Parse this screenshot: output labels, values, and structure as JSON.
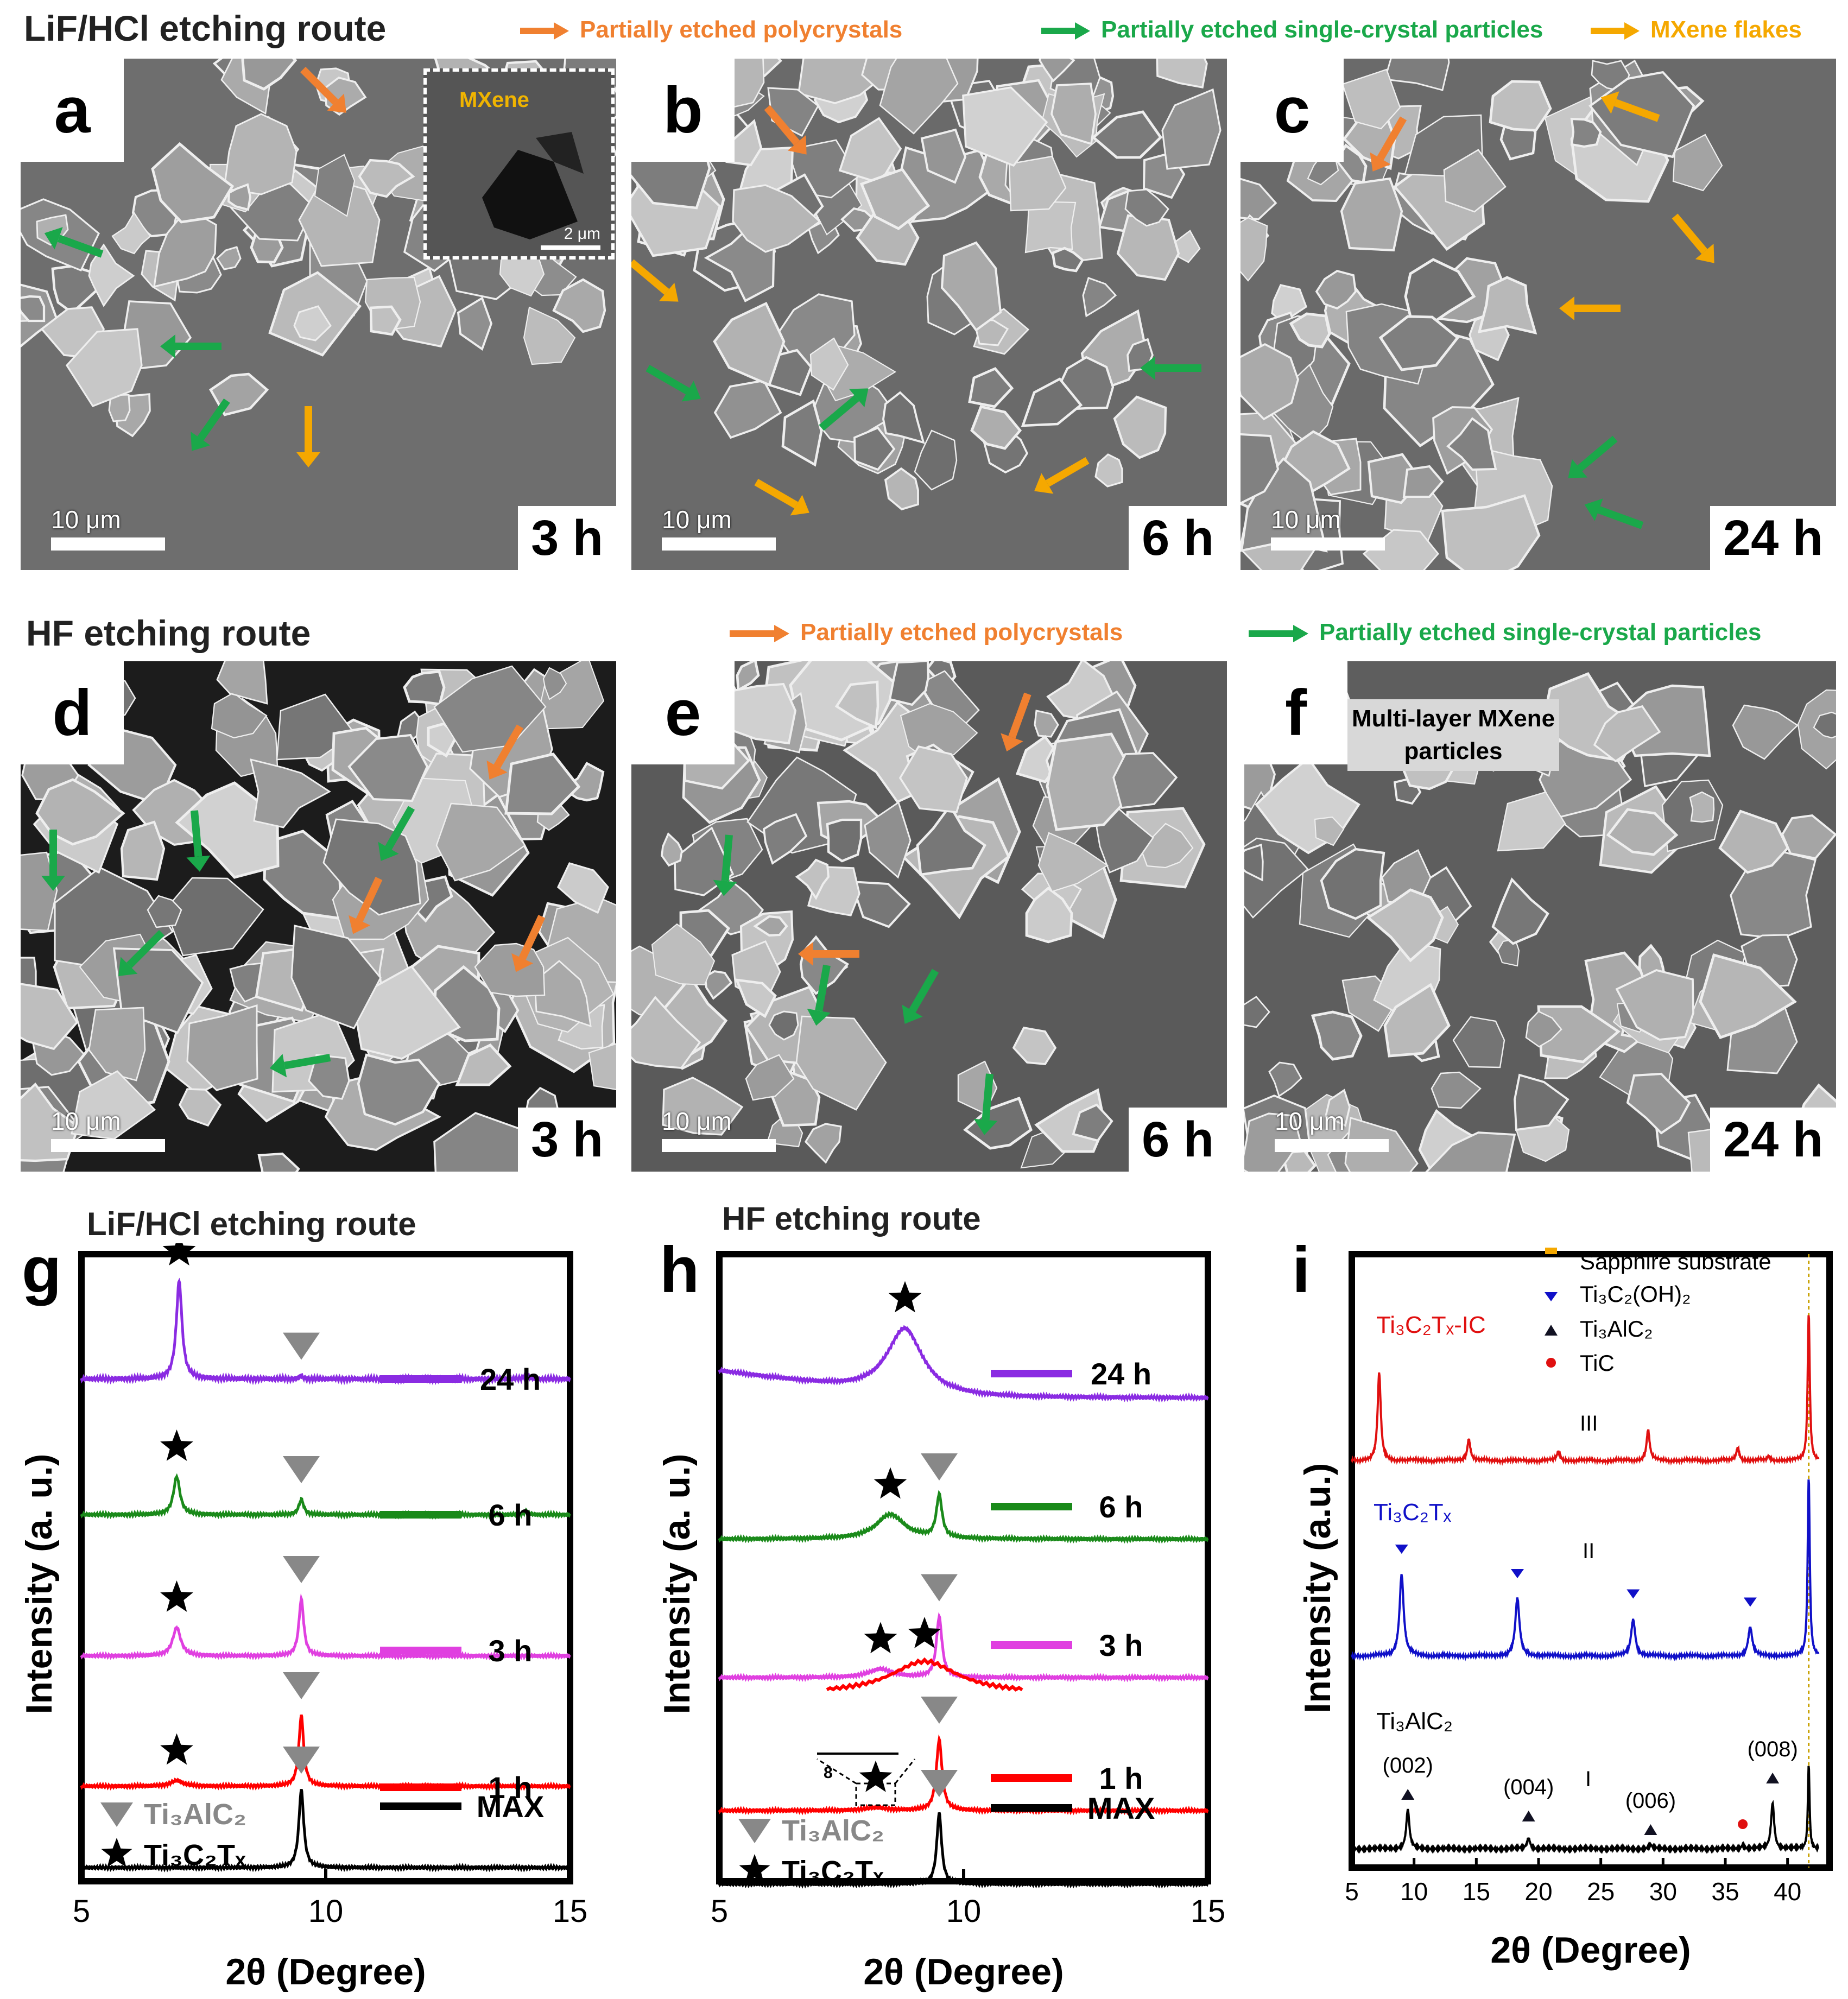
{
  "colors": {
    "orange": "#f08030",
    "green": "#1aa84a",
    "yellow": "#f5a800",
    "purple": "#8a2be2",
    "darkgreen": "#1a8a1a",
    "magenta": "#e040e0",
    "red": "#ff0000",
    "black": "#000000",
    "gray": "#808080",
    "blue": "#1010c8",
    "ic_red": "#e01010"
  },
  "sem": {
    "row1_title": "LiF/HCl etching route",
    "row1_legend": [
      "Partially etched polycrystals",
      "Partially etched single-crystal particles",
      "MXene flakes"
    ],
    "row2_title": "HF etching route",
    "row2_legend": [
      "Partially etched polycrystals",
      "Partially etched single-crystal particles"
    ],
    "panels": [
      {
        "label": "a",
        "time": "3 h",
        "scale": "10 μm",
        "inset_label": "MXene",
        "inset_scale": "2 μm"
      },
      {
        "label": "b",
        "time": "6 h",
        "scale": "10 μm"
      },
      {
        "label": "c",
        "time": "24 h",
        "scale": "10 μm"
      },
      {
        "label": "d",
        "time": "3 h",
        "scale": "10 μm"
      },
      {
        "label": "e",
        "time": "6 h",
        "scale": "10 μm"
      },
      {
        "label": "f",
        "time": "24 h",
        "scale": "10 μm",
        "note": "Multi-layer MXene particles"
      }
    ]
  },
  "chart_data": [
    {
      "panel": "g",
      "type": "line",
      "title": "LiF/HCl etching route",
      "xlabel": "2θ (Degree)",
      "ylabel": "Intensity (a. u.)",
      "xlim": [
        5,
        15
      ],
      "xticks": [
        5,
        10,
        15
      ],
      "legend_markers": [
        {
          "symbol": "triangle",
          "label": "Ti3AlC2"
        },
        {
          "symbol": "star",
          "label": "Ti3C2Tx"
        }
      ],
      "series": [
        {
          "name": "24 h",
          "color": "purple",
          "peaks": [
            {
              "x": 7.0,
              "h": 1.0,
              "w": 0.07,
              "label": "star"
            },
            {
              "x": 9.5,
              "h": 0.03,
              "w": 0.05,
              "label": "triangle"
            },
            {
              "x": 14.1,
              "h": 0.05,
              "w": 0.05
            }
          ]
        },
        {
          "name": "6 h",
          "color": "darkgreen",
          "peaks": [
            {
              "x": 6.95,
              "h": 0.5,
              "w": 0.08,
              "label": "star"
            },
            {
              "x": 9.5,
              "h": 0.2,
              "w": 0.06,
              "label": "triangle"
            },
            {
              "x": 14.1,
              "h": 0.05,
              "w": 0.05
            }
          ]
        },
        {
          "name": "3 h",
          "color": "magenta",
          "peaks": [
            {
              "x": 6.95,
              "h": 0.4,
              "w": 0.1,
              "label": "star"
            },
            {
              "x": 9.5,
              "h": 0.8,
              "w": 0.06,
              "label": "triangle"
            }
          ]
        },
        {
          "name": "1 h",
          "color": "red",
          "peaks": [
            {
              "x": 6.95,
              "h": 0.08,
              "w": 0.15,
              "label": "star"
            },
            {
              "x": 9.5,
              "h": 1.0,
              "w": 0.06,
              "label": "triangle"
            }
          ]
        },
        {
          "name": "MAX",
          "color": "black",
          "peaks": [
            {
              "x": 9.5,
              "h": 1.1,
              "w": 0.06,
              "label": "triangle"
            }
          ]
        }
      ]
    },
    {
      "panel": "h",
      "type": "line",
      "title": "HF etching route",
      "xlabel": "2θ (Degree)",
      "ylabel": "Intensity (a. u.)",
      "xlim": [
        5,
        15
      ],
      "xticks": [
        5,
        10,
        15
      ],
      "legend_markers": [
        {
          "symbol": "triangle",
          "label": "Ti3AlC2"
        },
        {
          "symbol": "star",
          "label": "Ti3C2Tx"
        }
      ],
      "inset_tick": "8",
      "series": [
        {
          "name": "24 h",
          "color": "purple",
          "peaks": [
            {
              "x": 8.8,
              "h": 0.9,
              "w": 0.45,
              "label": "star"
            }
          ]
        },
        {
          "name": "6 h",
          "color": "darkgreen",
          "peaks": [
            {
              "x": 8.5,
              "h": 0.35,
              "w": 0.35,
              "label": "star"
            },
            {
              "x": 9.5,
              "h": 0.6,
              "w": 0.07,
              "label": "triangle"
            }
          ]
        },
        {
          "name": "3 h",
          "color": "magenta",
          "peaks": [
            {
              "x": 8.3,
              "h": 0.12,
              "w": 0.3,
              "label": "star"
            },
            {
              "x": 9.5,
              "h": 0.85,
              "w": 0.07,
              "label": "triangle"
            }
          ]
        },
        {
          "name": "1 h",
          "color": "red",
          "peaks": [
            {
              "x": 8.2,
              "h": 0.04,
              "w": 0.3,
              "label": "star"
            },
            {
              "x": 9.5,
              "h": 1.0,
              "w": 0.07,
              "label": "triangle"
            }
          ]
        },
        {
          "name": "MAX",
          "color": "black",
          "peaks": [
            {
              "x": 9.5,
              "h": 1.0,
              "w": 0.06,
              "label": "triangle"
            }
          ]
        }
      ]
    },
    {
      "panel": "i",
      "type": "line",
      "xlabel": "2θ (Degree)",
      "ylabel": "Intensity (a.u.)",
      "xlim": [
        5,
        42.5
      ],
      "xticks": [
        5,
        10,
        15,
        20,
        25,
        30,
        35,
        40
      ],
      "legend": [
        "Sapphire substrate",
        "Ti3C2(OH)2",
        "Ti3AlC2",
        "TiC"
      ],
      "series": [
        {
          "name": "Ti3C2Tx-IC",
          "roman": "III",
          "color": "ic_red",
          "peaks": [
            {
              "x": 7.2,
              "h": 1.0,
              "w": 0.15
            },
            {
              "x": 14.4,
              "h": 0.25,
              "w": 0.15
            },
            {
              "x": 21.6,
              "h": 0.1,
              "w": 0.15
            },
            {
              "x": 28.8,
              "h": 0.35,
              "w": 0.15
            },
            {
              "x": 36.0,
              "h": 0.15,
              "w": 0.15
            },
            {
              "x": 38.5,
              "h": 0.05,
              "w": 0.15
            },
            {
              "x": 41.7,
              "h": 1.7,
              "w": 0.1
            }
          ]
        },
        {
          "name": "Ti3C2Tx",
          "roman": "II",
          "color": "blue",
          "peaks": [
            {
              "x": 9.0,
              "h": 1.0,
              "w": 0.2,
              "mark": "tri_down"
            },
            {
              "x": 18.3,
              "h": 0.7,
              "w": 0.2,
              "mark": "tri_down"
            },
            {
              "x": 27.6,
              "h": 0.45,
              "w": 0.2,
              "mark": "tri_down"
            },
            {
              "x": 37.0,
              "h": 0.35,
              "w": 0.2,
              "mark": "tri_down"
            },
            {
              "x": 41.7,
              "h": 2.2,
              "w": 0.1
            }
          ]
        },
        {
          "name": "Ti3AlC2",
          "roman": "I",
          "color": "black",
          "peaks": [
            {
              "x": 9.5,
              "h": 0.55,
              "w": 0.15,
              "mark": "tri_up",
              "hkl": "(002)"
            },
            {
              "x": 19.2,
              "h": 0.15,
              "w": 0.15,
              "mark": "tri_up",
              "hkl": "(004)"
            },
            {
              "x": 29.0,
              "h": 0.05,
              "w": 0.15,
              "mark": "tri_up",
              "hkl": "(006)"
            },
            {
              "x": 36.4,
              "h": 0.05,
              "w": 0.15,
              "mark": "circle"
            },
            {
              "x": 38.8,
              "h": 0.65,
              "w": 0.15,
              "mark": "tri_up",
              "hkl": "(008)"
            },
            {
              "x": 41.7,
              "h": 1.2,
              "w": 0.08
            }
          ]
        }
      ]
    }
  ],
  "chart_labels": {
    "g_ti3alc2": "Ti₃AlC₂",
    "g_ti3c2tx": "Ti₃C₂Tₓ",
    "h_ti3alc2": "Ti₃AlC₂",
    "h_ti3c2tx": "Ti₃C₂Tₓ",
    "i_leg1": "Sapphire substrate",
    "i_leg2": "Ti₃C₂(OH)₂",
    "i_leg3": "Ti₃AlC₂",
    "i_leg4": "TiC",
    "i_s3": "Ti₃C₂Tₓ-IC",
    "i_s2": "Ti₃C₂Tₓ",
    "i_s1": "Ti₃AlC₂",
    "i_r3": "III",
    "i_r2": "II",
    "i_r1": "I"
  }
}
